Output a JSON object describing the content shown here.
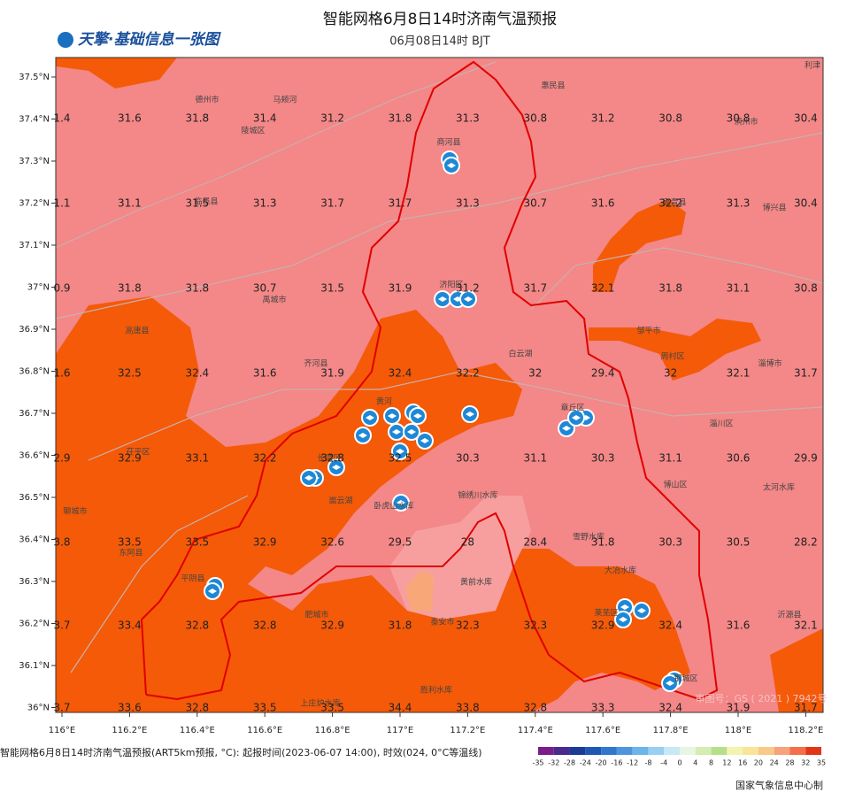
{
  "header": {
    "title": "智能网格6月8日14时济南气温预报",
    "subtitle": "06月08日14时 BJT",
    "logo": "天擎·基础信息一张图"
  },
  "axes": {
    "lat_labels": [
      "37.5°N",
      "37.4°N",
      "37.3°N",
      "37.2°N",
      "37.1°N",
      "37°N",
      "36.9°N",
      "36.8°N",
      "36.7°N",
      "36.6°N",
      "36.5°N",
      "36.4°N",
      "36.3°N",
      "36.2°N",
      "36.1°N",
      "36°N"
    ],
    "lon_labels": [
      "116°E",
      "116.2°E",
      "116.4°E",
      "116.6°E",
      "116.8°E",
      "117°E",
      "117.2°E",
      "117.4°E",
      "117.6°E",
      "117.8°E",
      "118°E",
      "118.2°E"
    ]
  },
  "grid": {
    "rows": [
      [
        "1.4",
        "31.6",
        "31.8",
        "31.4",
        "31.2",
        "31.8",
        "31.3",
        "30.8",
        "31.2",
        "30.8",
        "30.8",
        "30.4"
      ],
      [
        "1.1",
        "31.1",
        "31.5",
        "31.3",
        "31.7",
        "31.7",
        "31.3",
        "30.7",
        "31.6",
        "32.2",
        "31.3",
        "30.4"
      ],
      [
        "0.9",
        "31.8",
        "31.8",
        "30.7",
        "31.5",
        "31.9",
        "31.2",
        "31.7",
        "32.1",
        "31.8",
        "31.1",
        "30.8"
      ],
      [
        "1.6",
        "32.5",
        "32.4",
        "31.6",
        "31.9",
        "32.4",
        "32.2",
        "32",
        "29.4",
        "32",
        "32.1",
        "31.7"
      ],
      [
        "2.9",
        "32.9",
        "33.1",
        "32.2",
        "32.8",
        "32.5",
        "30.3",
        "31.1",
        "30.3",
        "31.1",
        "30.6",
        "29.9"
      ],
      [
        "3.8",
        "33.5",
        "33.5",
        "32.9",
        "32.6",
        "29.5",
        "28",
        "28.4",
        "31.8",
        "30.3",
        "30.5",
        "28.2"
      ],
      [
        "3.7",
        "33.4",
        "32.8",
        "32.8",
        "32.9",
        "31.8",
        "32.3",
        "32.3",
        "32.9",
        "32.4",
        "31.6",
        "32.1"
      ],
      [
        "3.7",
        "33.6",
        "32.8",
        "33.5",
        "33.5",
        "34.4",
        "33.8",
        "32.8",
        "33.3",
        "32.4",
        "31.9",
        "31.7"
      ]
    ]
  },
  "places": [
    "德州市",
    "马颊河",
    "陵城区",
    "商河县",
    "惠民县",
    "滨州市",
    "临邑县",
    "济阳区",
    "禹城市",
    "高唐县",
    "齐河县",
    "黄河",
    "白云湖",
    "章丘区",
    "邹平市",
    "周村区",
    "淄博市",
    "高青县",
    "博兴县",
    "淄川区",
    "博山区",
    "太河水库",
    "茌平区",
    "聊城市",
    "东阿县",
    "平阴县",
    "卧虎山水库",
    "锦绣川水库",
    "雪野水库",
    "大冶水库",
    "黄前水库",
    "泰安市",
    "莱芜区",
    "肥城市",
    "钢城区",
    "沂源县",
    "胜利水库",
    "上庄炉水库",
    "利津",
    "长清区",
    "崮云湖"
  ],
  "watermark": "审图号：GS ( 2021 ) 7942号",
  "legend": {
    "labels": [
      "-35",
      "-32",
      "-28",
      "-24",
      "-20",
      "-16",
      "-12",
      "-8",
      "-4",
      "0",
      "4",
      "8",
      "12",
      "16",
      "20",
      "24",
      "28",
      "32",
      "35"
    ]
  },
  "footer": {
    "caption": "智能网格6月8日14时济南气温预报(ART5km预报, °C): 起报时间(2023-06-07 14:00), 时效(024, 0°C等温线)",
    "credit": "国家气象信息中心制"
  }
}
